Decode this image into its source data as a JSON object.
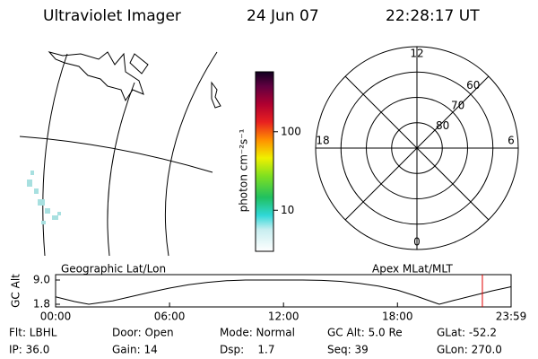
{
  "header": {
    "title": "Ultraviolet Imager",
    "date": "24 Jun 07",
    "time": "22:28:17 UT"
  },
  "map": {
    "label": "Geographic Lat/Lon"
  },
  "colorbar": {
    "label": "photon cm⁻²s⁻¹",
    "scale": "log",
    "lim": [
      3,
      580
    ],
    "ticks": [
      10,
      100
    ]
  },
  "polar": {
    "label": "Apex MLat/MLT",
    "latlim": [
      50,
      90
    ],
    "rings": [
      50,
      60,
      70,
      80
    ],
    "ring_labels": [
      60,
      70,
      80
    ],
    "mlt_labels": [
      12,
      18,
      6,
      0
    ]
  },
  "chart_data": {
    "type": "line",
    "ylabel": "GC Alt",
    "x": [
      0,
      1,
      1.75,
      3,
      4,
      5,
      6,
      7,
      8,
      9,
      10,
      11,
      12,
      13,
      14,
      15,
      16,
      17,
      18,
      19,
      20,
      20.2,
      21,
      22,
      23,
      23.983
    ],
    "series": [
      {
        "name": "GC Alt",
        "color": "#000000",
        "values": [
          4.0,
          2.6,
          1.8,
          2.8,
          4.1,
          5.4,
          6.6,
          7.6,
          8.3,
          8.8,
          9.0,
          9.0,
          9.0,
          9.0,
          8.9,
          8.6,
          8.0,
          7.2,
          6.0,
          4.2,
          2.2,
          1.8,
          3.0,
          4.4,
          5.8,
          7.0
        ]
      }
    ],
    "xlim": [
      0,
      23.983
    ],
    "xticks": [
      {
        "value": 0,
        "label": "00:00"
      },
      {
        "value": 6,
        "label": "06:00"
      },
      {
        "value": 12,
        "label": "12:00"
      },
      {
        "value": 18,
        "label": "18:00"
      },
      {
        "value": 23.983,
        "label": "23:59"
      }
    ],
    "ylim": [
      1.8,
      9.0
    ],
    "yticks": [
      {
        "value": 9,
        "label": "9.0"
      },
      1.8
    ],
    "marker_x": 22.471,
    "marker_color": "#e00000"
  },
  "footer": {
    "rows": [
      [
        "Flt: LBHL",
        "Door: Open",
        "Mode: Normal",
        "GC Alt: 5.0 Re",
        "GLat: -52.2"
      ],
      [
        "IP: 36.0",
        "Gain: 14",
        "Dsp:    1.7",
        "Seq: 39",
        "GLon: 270.0"
      ]
    ]
  }
}
